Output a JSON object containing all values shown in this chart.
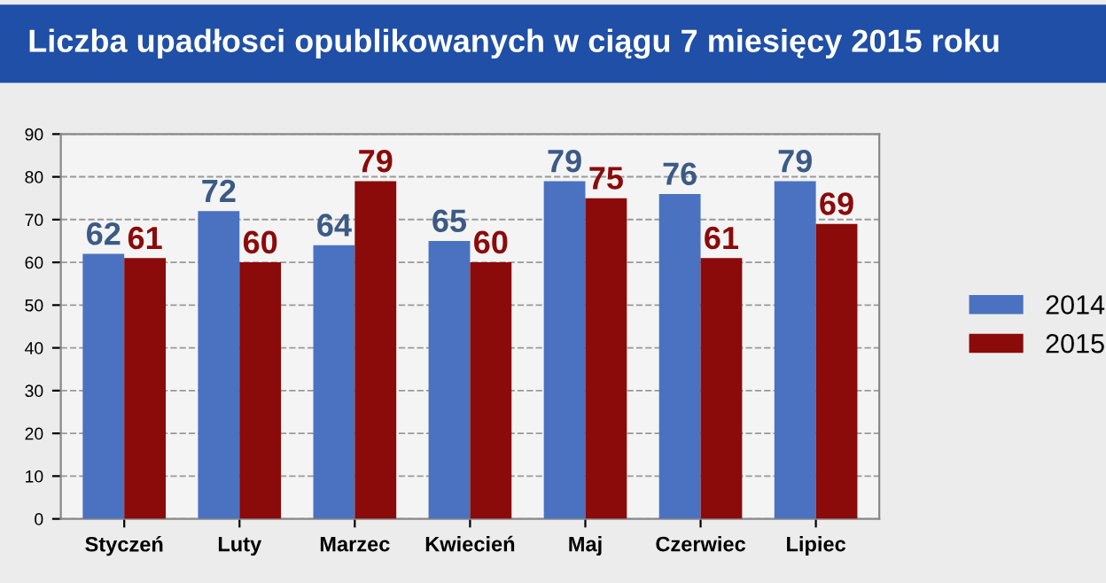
{
  "chart_data": {
    "type": "bar",
    "title": "Liczba upadłosci opublikowanych w ciągu 7 miesięcy 2015 roku",
    "categories": [
      "Styczeń",
      "Luty",
      "Marzec",
      "Kwiecień",
      "Maj",
      "Czerwiec",
      "Lipiec"
    ],
    "series": [
      {
        "name": "2014",
        "color": "#4a72c0",
        "values": [
          62,
          72,
          64,
          65,
          79,
          76,
          79
        ]
      },
      {
        "name": "2015",
        "color": "#8b0a0a",
        "values": [
          61,
          60,
          79,
          60,
          75,
          61,
          69
        ]
      }
    ],
    "ylim": [
      0,
      90
    ],
    "yticks": [
      0,
      10,
      20,
      30,
      40,
      50,
      60,
      70,
      80,
      90
    ],
    "grid": "y",
    "legend": "right",
    "data_labels": true
  }
}
